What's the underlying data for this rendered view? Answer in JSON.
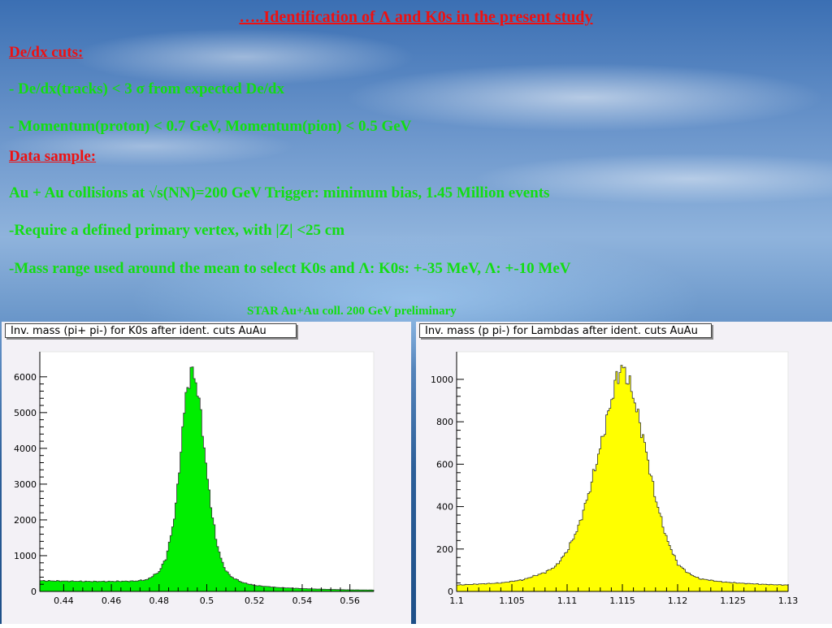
{
  "slide": {
    "title": "…..Identification of Λ and K0s in the present study",
    "dedx_heading": "De/dx cuts:",
    "dedx_line1": "- De/dx(tracks) < 3 σ from expected De/dx",
    "dedx_line2": "- Momentum(proton) < 0.7 GeV,  Momentum(pion) < 0.5 GeV",
    "sample_heading": "Data sample:",
    "sample_line1": "Au + Au collisions at √s(NN)=200 GeV          Trigger:  minimum bias,  1.45 Million events",
    "sample_line2": "-Require a defined primary vertex, with |Z| <25 cm",
    "sample_line3": "-Mass range used around the mean to select K0s and Λ:   K0s: +-35 MeV,  Λ:  +-10 MeV",
    "preliminary": "STAR Au+Au coll. 200 GeV preliminary"
  },
  "chart_data": [
    {
      "type": "area",
      "title": "Inv. mass (pi+ pi-) for K0s after ident. cuts AuAu",
      "color": "#00ee00",
      "xlim": [
        0.43,
        0.57
      ],
      "ylim": [
        0,
        6700
      ],
      "xticks": [
        0.44,
        0.46,
        0.48,
        0.5,
        0.52,
        0.54,
        0.56
      ],
      "xtick_labels": [
        "0.44",
        "0.46",
        "0.48",
        "0.5",
        "0.52",
        "0.54",
        "0.56"
      ],
      "yticks": [
        0,
        1000,
        2000,
        3000,
        4000,
        5000,
        6000
      ],
      "ytick_labels": [
        "0",
        "1000",
        "2000",
        "3000",
        "4000",
        "5000",
        "6000"
      ],
      "x": [
        0.43,
        0.44,
        0.45,
        0.46,
        0.47,
        0.475,
        0.48,
        0.483,
        0.486,
        0.488,
        0.49,
        0.492,
        0.494,
        0.496,
        0.498,
        0.5,
        0.502,
        0.504,
        0.507,
        0.51,
        0.515,
        0.52,
        0.53,
        0.54,
        0.55,
        0.56,
        0.57
      ],
      "y": [
        300,
        290,
        280,
        280,
        290,
        330,
        550,
        950,
        1900,
        3000,
        4700,
        5800,
        6200,
        5700,
        4700,
        3300,
        2300,
        1400,
        700,
        420,
        250,
        170,
        110,
        80,
        60,
        45,
        40
      ]
    },
    {
      "type": "area",
      "title": "Inv. mass (p pi-) for Lambdas after ident. cuts AuAu",
      "color": "#ffff00",
      "xlim": [
        1.1,
        1.13
      ],
      "ylim": [
        0,
        1130
      ],
      "xticks": [
        1.1,
        1.105,
        1.11,
        1.115,
        1.12,
        1.125,
        1.13
      ],
      "xtick_labels": [
        "1.1",
        "1.105",
        "1.11",
        "1.115",
        "1.12",
        "1.125",
        "1.13"
      ],
      "yticks": [
        0,
        200,
        400,
        600,
        800,
        1000
      ],
      "ytick_labels": [
        "0",
        "200",
        "400",
        "600",
        "800",
        "1000"
      ],
      "x": [
        1.1,
        1.102,
        1.104,
        1.106,
        1.108,
        1.109,
        1.11,
        1.111,
        1.112,
        1.113,
        1.114,
        1.1145,
        1.115,
        1.1155,
        1.116,
        1.117,
        1.118,
        1.119,
        1.12,
        1.121,
        1.122,
        1.124,
        1.126,
        1.128,
        1.13
      ],
      "y": [
        30,
        35,
        40,
        55,
        90,
        120,
        190,
        300,
        470,
        680,
        900,
        1010,
        1060,
        1000,
        920,
        700,
        440,
        250,
        130,
        85,
        60,
        45,
        38,
        33,
        30
      ]
    }
  ]
}
